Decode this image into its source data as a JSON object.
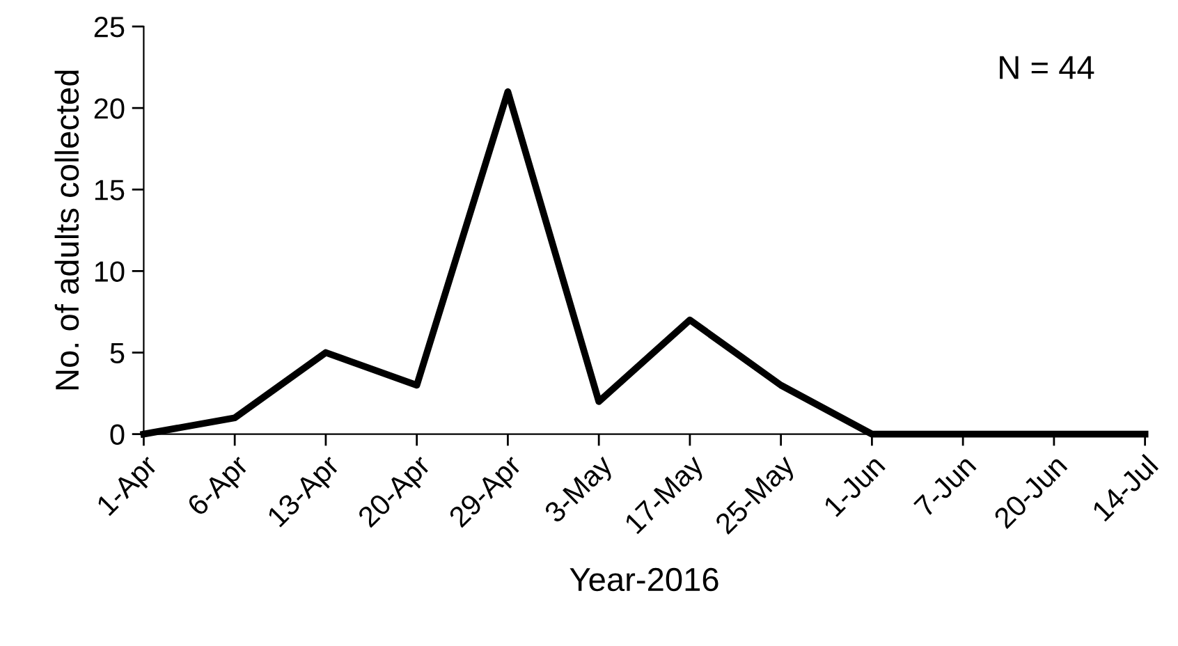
{
  "chart_data": {
    "type": "line",
    "xlabel": "Year-2016",
    "ylabel": "No. of adults collected",
    "categories": [
      "1-Apr",
      "6-Apr",
      "13-Apr",
      "20-Apr",
      "29-Apr",
      "3-May",
      "17-May",
      "25-May",
      "1-Jun",
      "7-Jun",
      "20-Jun",
      "14-Jul"
    ],
    "series": [
      {
        "color": "#000000",
        "values": [
          0,
          1,
          5,
          3,
          21,
          2,
          7,
          3,
          0,
          0,
          0,
          0
        ]
      }
    ],
    "ylim": [
      0,
      25
    ],
    "yticks": [
      0,
      5,
      10,
      15,
      20,
      25
    ],
    "annotations": [
      "N = 44"
    ],
    "grid": false,
    "legend": false,
    "marker": "none",
    "line_style": "solid"
  }
}
